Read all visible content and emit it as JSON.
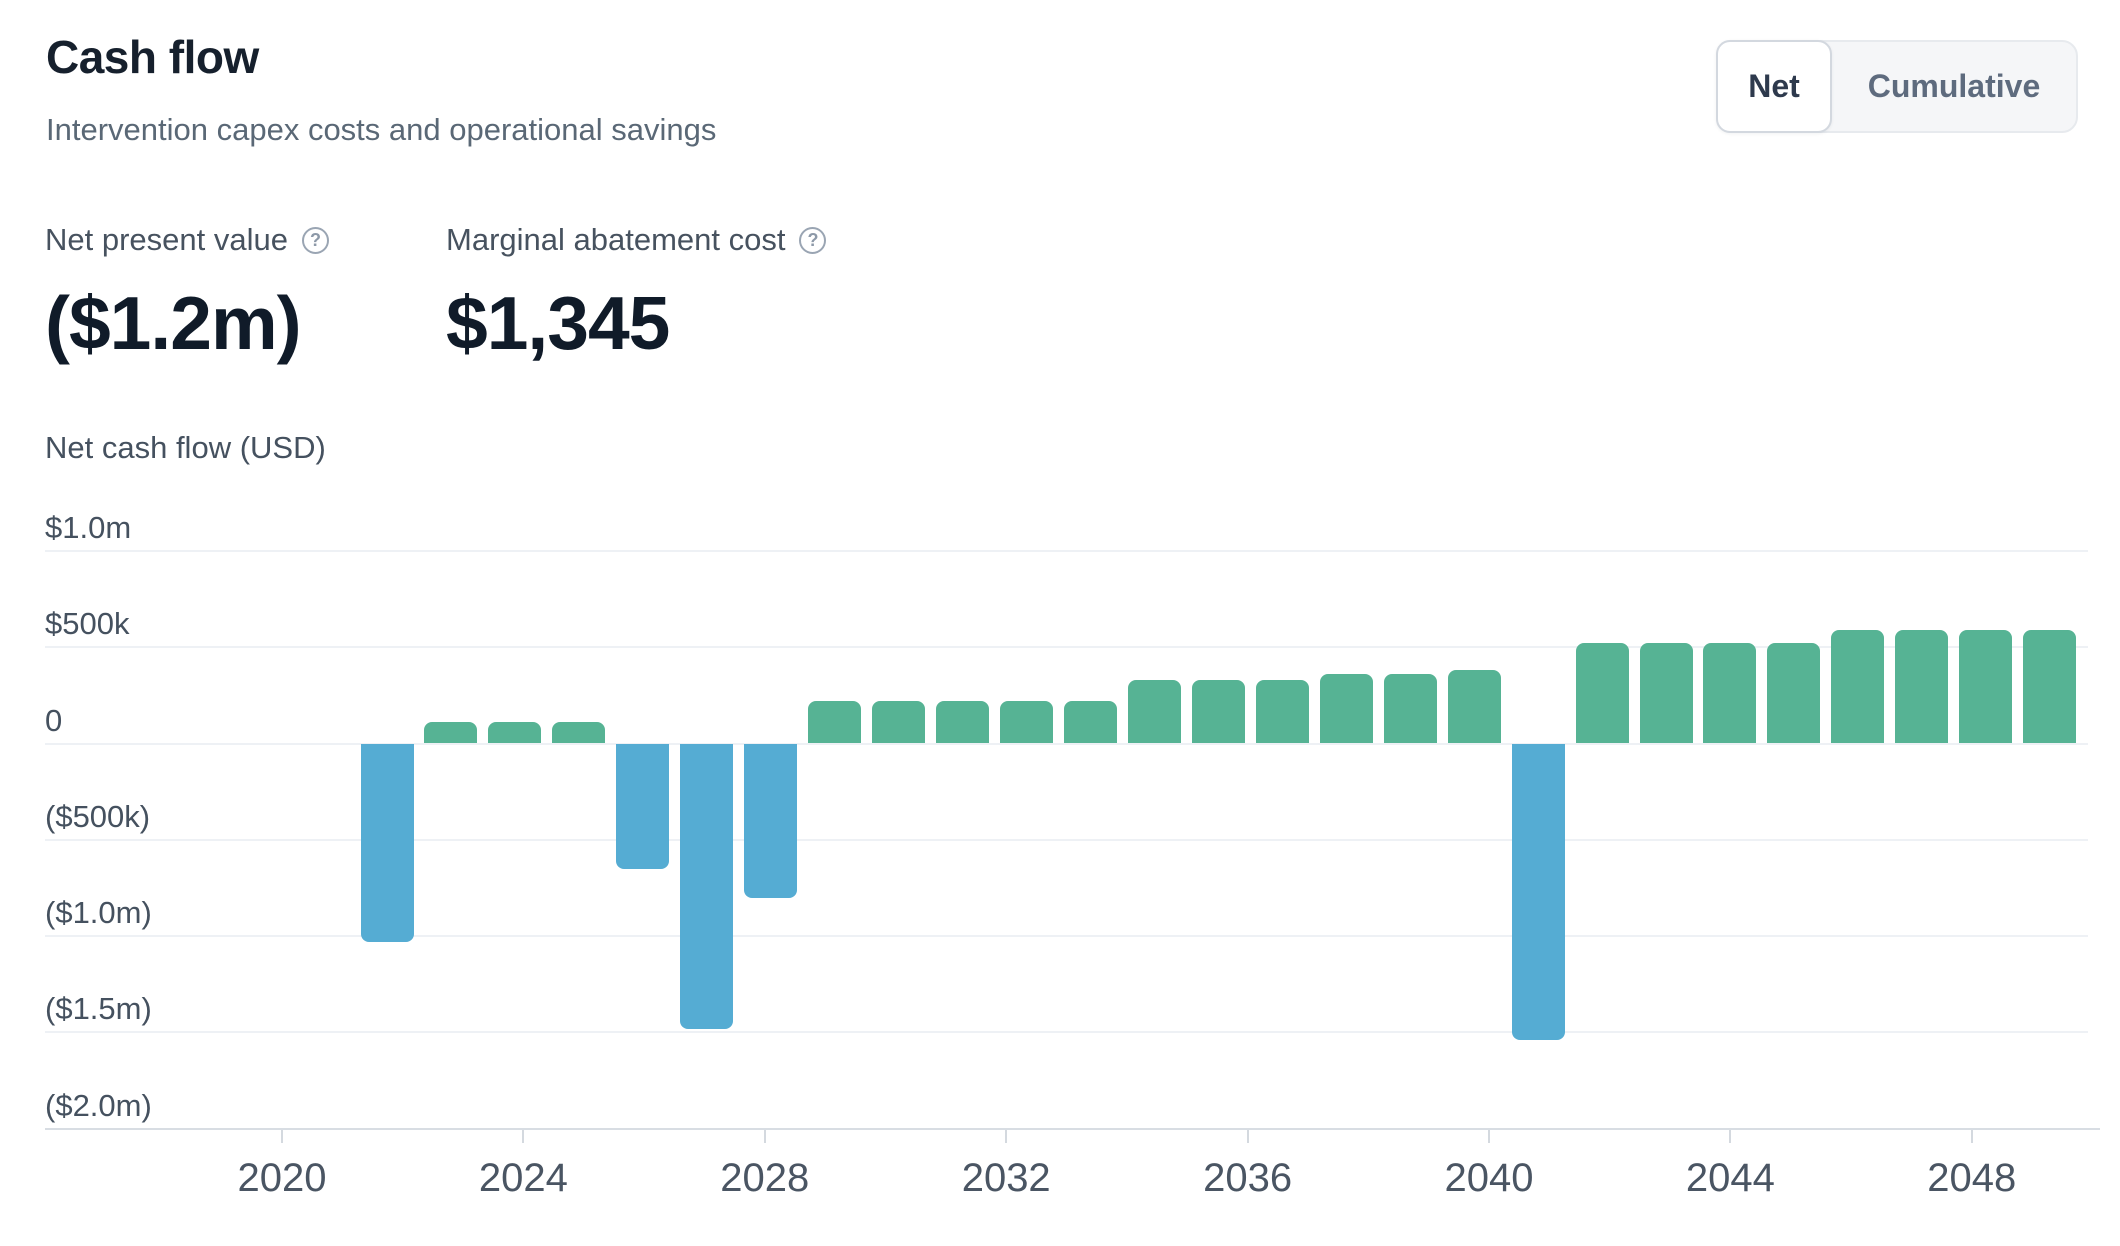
{
  "header": {
    "title": "Cash flow",
    "subtitle": "Intervention capex costs and operational savings"
  },
  "toggle": {
    "options": [
      {
        "label": "Net",
        "active": true
      },
      {
        "label": "Cumulative",
        "active": false
      }
    ]
  },
  "metrics": [
    {
      "label": "Net present value",
      "help_icon": "question-circle",
      "help_glyph": "?",
      "value": "($1.2m)"
    },
    {
      "label": "Marginal abatement cost",
      "help_icon": "question-circle",
      "help_glyph": "?",
      "value": "$1,345"
    }
  ],
  "chart_data": {
    "type": "bar",
    "title": "",
    "ylabel": "Net cash flow (USD)",
    "xlabel": "",
    "unit": "USD millions",
    "grid": true,
    "legend": false,
    "ylim": [
      -2.0,
      1.0
    ],
    "colors": {
      "positive": "#56b394",
      "negative": "#55acd3"
    },
    "years": [
      2022,
      2023,
      2024,
      2025,
      2026,
      2027,
      2028,
      2029,
      2030,
      2031,
      2032,
      2033,
      2034,
      2035,
      2036,
      2037,
      2038,
      2039,
      2040,
      2041,
      2042,
      2043,
      2044,
      2045,
      2046,
      2047,
      2048
    ],
    "values": [
      -1.03,
      0.11,
      0.11,
      0.11,
      -0.65,
      -1.48,
      -0.8,
      0.22,
      0.22,
      0.22,
      0.22,
      0.22,
      0.33,
      0.33,
      0.33,
      0.36,
      0.36,
      0.38,
      -1.54,
      0.52,
      0.52,
      0.52,
      0.52,
      0.59,
      0.59,
      0.59,
      0.59
    ],
    "y_ticks": [
      {
        "label": "$1.0m",
        "value": 1.0
      },
      {
        "label": "$500k",
        "value": 0.5
      },
      {
        "label": "0",
        "value": 0.0
      },
      {
        "label": "($500k)",
        "value": -0.5
      },
      {
        "label": "($1.0m)",
        "value": -1.0
      },
      {
        "label": "($1.5m)",
        "value": -1.5
      },
      {
        "label": "($2.0m)",
        "value": -2.0,
        "axis": true
      }
    ],
    "x_ticks": [
      {
        "label": "2020",
        "year": 2020
      },
      {
        "label": "2024",
        "year": 2024
      },
      {
        "label": "2028",
        "year": 2028
      },
      {
        "label": "2032",
        "year": 2032
      },
      {
        "label": "2036",
        "year": 2036
      },
      {
        "label": "2040",
        "year": 2040
      },
      {
        "label": "2044",
        "year": 2044
      },
      {
        "label": "2048",
        "year": 2048
      }
    ]
  }
}
